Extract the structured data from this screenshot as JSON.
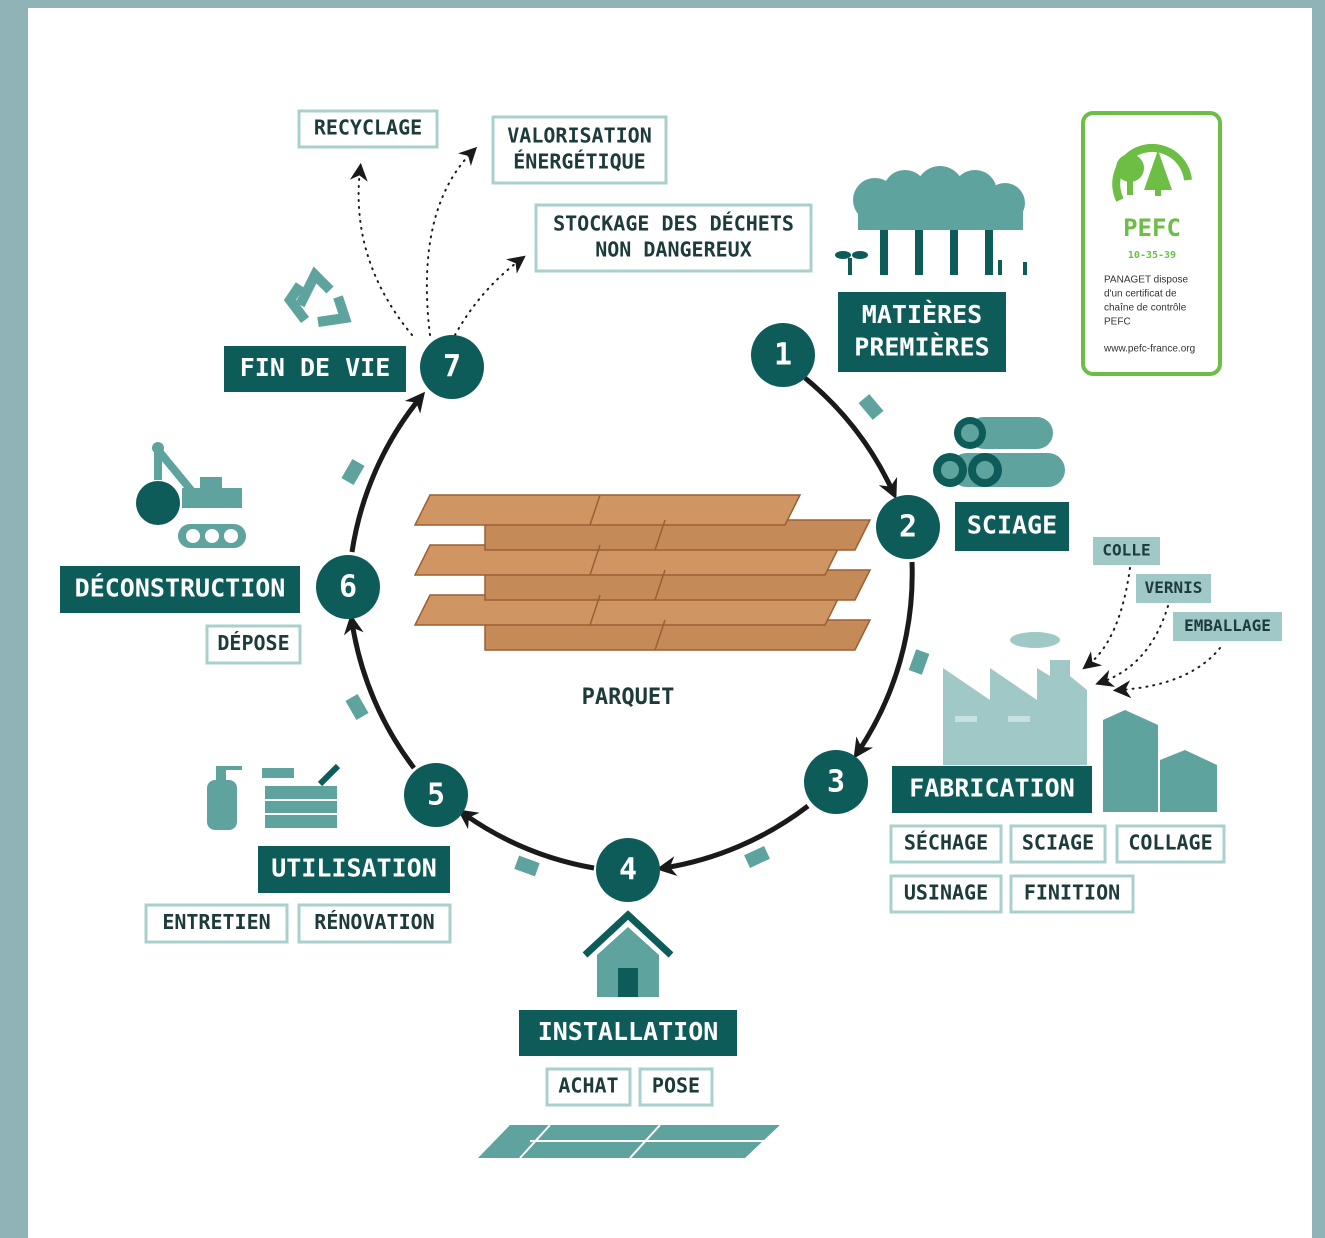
{
  "center_label": "PARQUET",
  "stages": [
    {
      "number": 1,
      "title": [
        "MATIÈRES",
        "PREMIÈRES"
      ]
    },
    {
      "number": 2,
      "title": [
        "SCIAGE"
      ]
    },
    {
      "number": 3,
      "title": [
        "FABRICATION"
      ],
      "steps": [
        "SÉCHAGE",
        "SCIAGE",
        "COLLAGE",
        "USINAGE",
        "FINITION"
      ],
      "inputs": [
        "COLLE",
        "VERNIS",
        "EMBALLAGE"
      ]
    },
    {
      "number": 4,
      "title": [
        "INSTALLATION"
      ],
      "steps": [
        "ACHAT",
        "POSE"
      ]
    },
    {
      "number": 5,
      "title": [
        "UTILISATION"
      ],
      "steps": [
        "ENTRETIEN",
        "RÉNOVATION"
      ]
    },
    {
      "number": 6,
      "title": [
        "DÉCONSTRUCTION"
      ],
      "steps": [
        "DÉPOSE"
      ]
    },
    {
      "number": 7,
      "title": [
        "FIN DE VIE"
      ],
      "outcomes": [
        [
          "RECYCLAGE"
        ],
        [
          "VALORISATION",
          "ÉNERGÉTIQUE"
        ],
        [
          "STOCKAGE DES DÉCHETS",
          "NON DANGEREUX"
        ]
      ]
    }
  ],
  "pefc": {
    "brand": "PEFC",
    "code": "10-35-39",
    "statement": [
      "PANAGET dispose",
      "d'un certificat de",
      "chaîne de contrôle",
      "PEFC"
    ],
    "url": "www.pefc-france.org"
  }
}
